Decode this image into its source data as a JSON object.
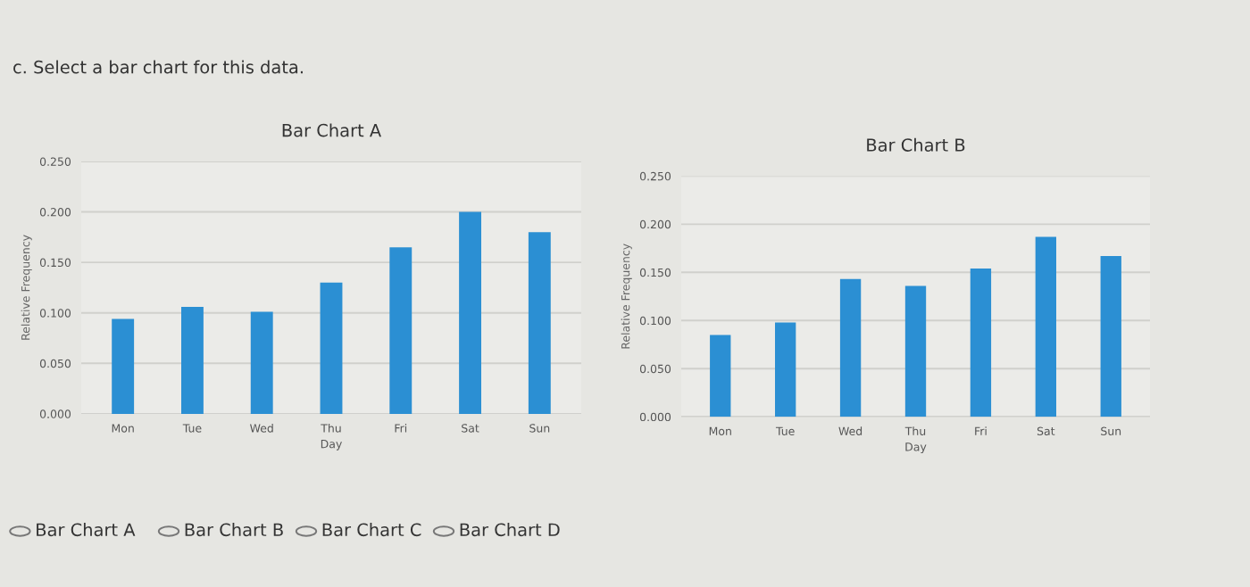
{
  "chart_data": [
    {
      "type": "bar",
      "title": "Bar Chart A",
      "xlabel": "Day",
      "ylabel": "Relative Frequency",
      "categories": [
        "Mon",
        "Tue",
        "Wed",
        "Thu",
        "Fri",
        "Sat",
        "Sun"
      ],
      "values": [
        0.094,
        0.106,
        0.101,
        0.13,
        0.165,
        0.2,
        0.18
      ],
      "color": "#2b8fd3",
      "ylim": [
        0,
        0.25
      ],
      "yticks": [
        {
          "value": 0,
          "label": "0.000"
        },
        {
          "value": 0.05,
          "label": "0.050"
        },
        {
          "value": 0.1,
          "label": "0.100"
        },
        {
          "value": 0.15,
          "label": "0.150"
        },
        {
          "value": 0.2,
          "label": "0.200"
        },
        {
          "value": 0.25,
          "label": "0.250"
        }
      ],
      "grid": "y",
      "annotations": [
        "c. Select a bar chart for this data.",
        "Bar Chart A",
        "Bar Chart B",
        "Bar Chart C",
        "Bar Chart D"
      ]
    },
    {
      "type": "bar",
      "title": "Bar Chart B",
      "xlabel": "Day",
      "ylabel": "Relative Frequency",
      "categories": [
        "Mon",
        "Tue",
        "Wed",
        "Thu",
        "Fri",
        "Sat",
        "Sun"
      ],
      "values": [
        0.085,
        0.098,
        0.143,
        0.136,
        0.154,
        0.187,
        0.167
      ],
      "color": "#2b8fd3",
      "ylim": [
        0,
        0.25
      ],
      "yticks": [
        {
          "value": 0,
          "label": "0.000"
        },
        {
          "value": 0.05,
          "label": "0.050"
        },
        {
          "value": 0.1,
          "label": "0.100"
        },
        {
          "value": 0.15,
          "label": "0.150"
        },
        {
          "value": 0.2,
          "label": "0.200"
        },
        {
          "value": 0.25,
          "label": "0.250"
        }
      ],
      "grid": "y"
    }
  ]
}
